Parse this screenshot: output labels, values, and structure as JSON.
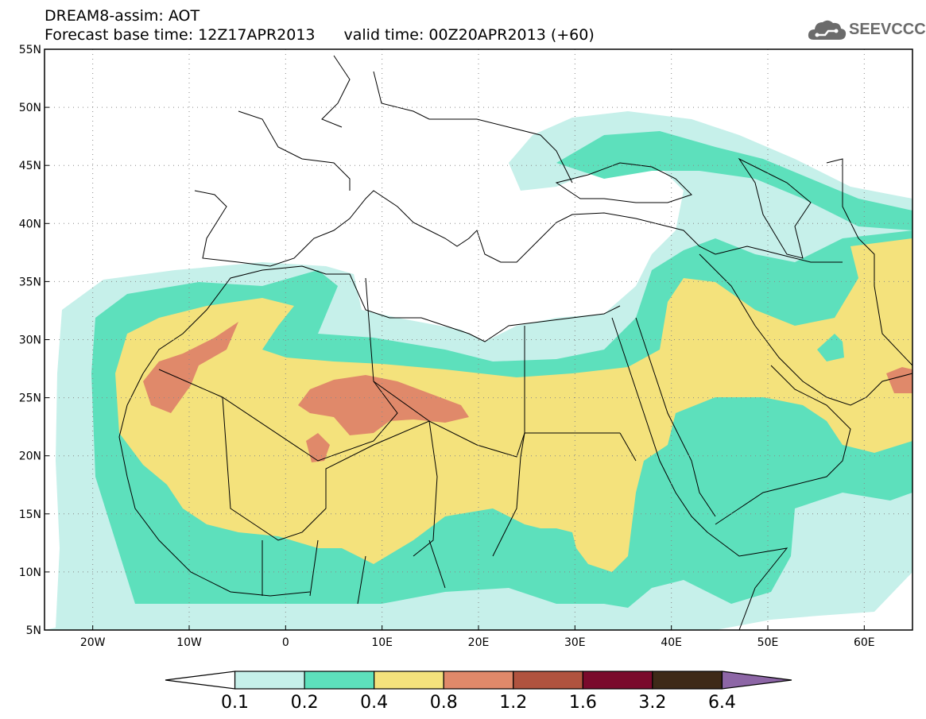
{
  "title": {
    "line1": "DREAM8-assim: AOT",
    "base": "Forecast base time: 12Z17APR2013",
    "valid": "valid time: 00Z20APR2013 (+60)"
  },
  "logo": {
    "text": "SEEVCCC"
  },
  "axes": {
    "lat_labels": [
      "55N",
      "50N",
      "45N",
      "40N",
      "35N",
      "30N",
      "25N",
      "20N",
      "15N",
      "10N",
      "5N"
    ],
    "lat_values": [
      55,
      50,
      45,
      40,
      35,
      30,
      25,
      20,
      15,
      10,
      5
    ],
    "lon_labels": [
      "20W",
      "10W",
      "0",
      "10E",
      "20E",
      "30E",
      "40E",
      "50E",
      "60E"
    ],
    "lon_values": [
      -20,
      -10,
      0,
      10,
      20,
      30,
      40,
      50,
      60
    ],
    "lon_range": [
      -25,
      65
    ],
    "lat_range": [
      5,
      55
    ],
    "grid": "dotted"
  },
  "colorbar": {
    "labels": [
      "0.1",
      "0.2",
      "0.4",
      "0.8",
      "1.2",
      "1.6",
      "3.2",
      "6.4"
    ],
    "colors": [
      "#ffffff",
      "#c6f0ea",
      "#5de0bc",
      "#f4e27c",
      "#e0896a",
      "#b0533f",
      "#7a0a2c",
      "#3e2a18",
      "#8d66a6"
    ]
  },
  "levels": {
    "c1": "#c6f0ea",
    "c2": "#5de0bc",
    "c3": "#f4e27c",
    "c4": "#e0896a",
    "c5": "#b0533f"
  }
}
